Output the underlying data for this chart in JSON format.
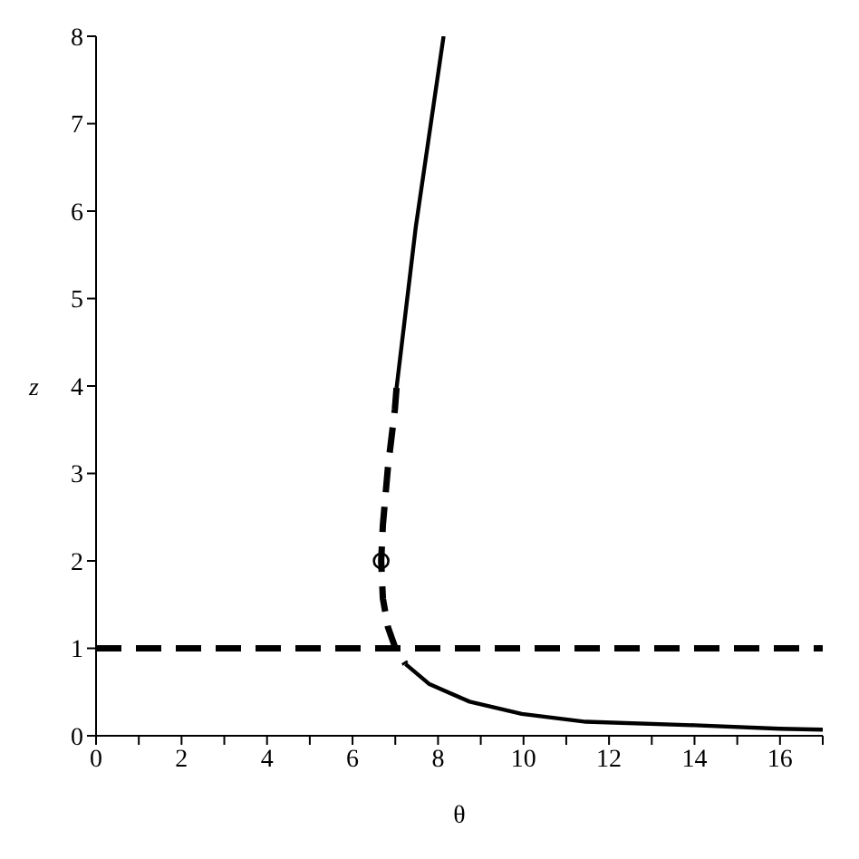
{
  "chart_data": {
    "type": "line",
    "xlabel": "θ",
    "ylabel": "z",
    "xlim": [
      0,
      17
    ],
    "ylim": [
      0,
      8
    ],
    "xticks": [
      0,
      {
        "value": 1,
        "label": null
      },
      2,
      {
        "value": 3,
        "label": null
      },
      4,
      {
        "value": 5,
        "label": null
      },
      6,
      {
        "value": 7,
        "label": null
      },
      8,
      {
        "value": 9,
        "label": null
      },
      10,
      {
        "value": 11,
        "label": null
      },
      12,
      {
        "value": 13,
        "label": null
      },
      14,
      {
        "value": 15,
        "label": null
      },
      16,
      {
        "value": 17,
        "label": null
      }
    ],
    "yticks": [
      0,
      1,
      2,
      3,
      4,
      5,
      6,
      7,
      8
    ],
    "grid": false,
    "series": [
      {
        "color": "#000000",
        "line_style": "solid",
        "marker": "none",
        "x": [
          8.13,
          7.48,
          7.03
        ],
        "values": [
          8,
          5.82,
          3.98
        ]
      },
      {
        "color": "#000000",
        "line_style": "dashed",
        "marker": "none",
        "x": [
          7.03,
          6.99,
          6.83,
          6.71,
          6.67,
          6.71,
          6.83,
          6.99,
          7.24
        ],
        "values": [
          3.98,
          3.73,
          3.08,
          2.41,
          2.0,
          1.57,
          1.24,
          1.02,
          0.82
        ]
      },
      {
        "color": "#000000",
        "line_style": "solid",
        "marker": "none",
        "x": [
          7.24,
          7.8,
          8.74,
          9.96,
          11.46,
          14,
          16,
          17
        ],
        "values": [
          0.82,
          0.59,
          0.39,
          0.25,
          0.16,
          0.12,
          0.08,
          0.07
        ]
      },
      {
        "type": "scatter",
        "color": "#000000",
        "marker": "circle",
        "x": [
          6.67
        ],
        "values": [
          2.0
        ]
      }
    ],
    "ref_lines": [
      {
        "axis": "y",
        "value": 1,
        "color": "#000000",
        "line_style": "dashed"
      }
    ]
  }
}
